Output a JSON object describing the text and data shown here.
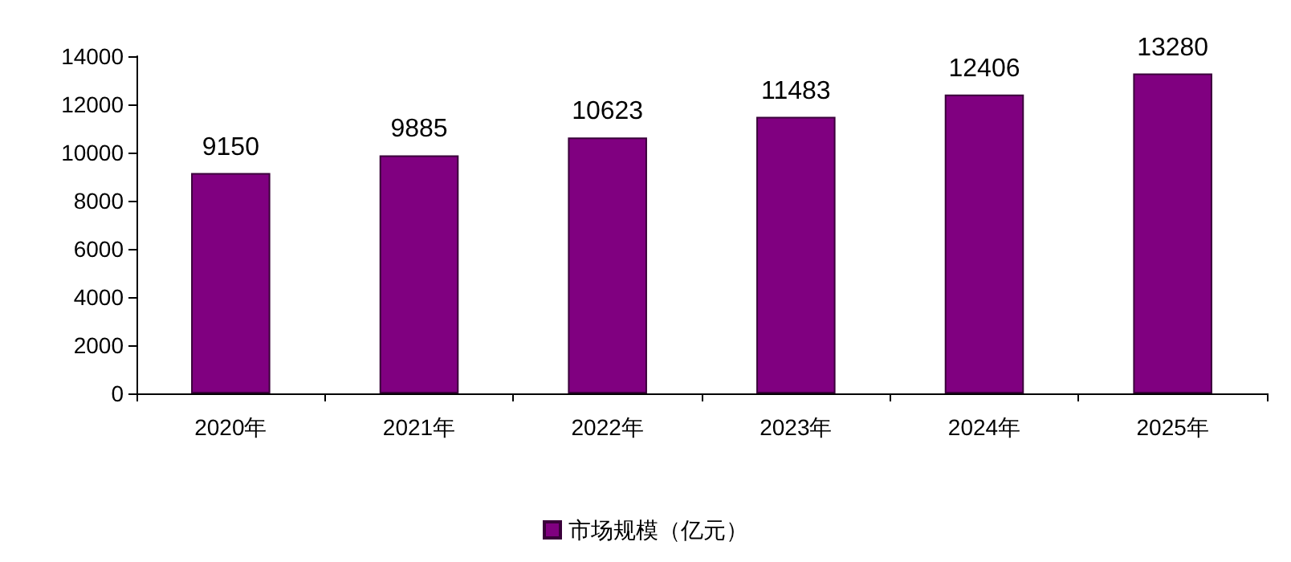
{
  "chart_data": {
    "type": "bar",
    "categories": [
      "2020年",
      "2021年",
      "2022年",
      "2023年",
      "2024年",
      "2025年"
    ],
    "series": [
      {
        "name": "市场规模（亿元）",
        "color": "#800080",
        "values": [
          9150,
          9885,
          10623,
          11483,
          12406,
          13280
        ]
      }
    ],
    "ylim": [
      0,
      14000
    ],
    "yticks": [
      0,
      2000,
      4000,
      6000,
      8000,
      10000,
      12000,
      14000
    ],
    "data_labels": true,
    "grid": false,
    "legend": "bottom"
  }
}
